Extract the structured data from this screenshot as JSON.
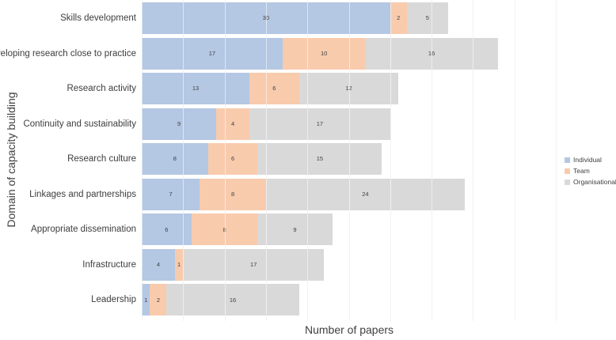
{
  "chart_data": {
    "type": "bar",
    "orientation": "horizontal",
    "stacked": true,
    "title": "",
    "xlabel": "Number of papers",
    "ylabel": "Domain of capacity building",
    "xlim": [
      0,
      50
    ],
    "grid": true,
    "grid_interval": 5,
    "tick_labels_shown": false,
    "data_labels_shown": true,
    "legend_position": "right",
    "categories": [
      "Skills development",
      "Developing research close to practice",
      "Research activity",
      "Continuity and sustainability",
      "Research culture",
      "Linkages and partnerships",
      "Appropriate dissemination",
      "Infrastructure",
      "Leadership"
    ],
    "series": [
      {
        "name": "Individual",
        "color": "#b4c7e3",
        "values": [
          30,
          17,
          13,
          9,
          8,
          7,
          6,
          4,
          1
        ]
      },
      {
        "name": "Team",
        "color": "#f8cbad",
        "values": [
          2,
          10,
          6,
          4,
          6,
          8,
          8,
          1,
          2
        ]
      },
      {
        "name": "Organisational",
        "color": "#d9d9d9",
        "values": [
          5,
          16,
          12,
          17,
          15,
          24,
          9,
          17,
          16
        ]
      }
    ]
  }
}
